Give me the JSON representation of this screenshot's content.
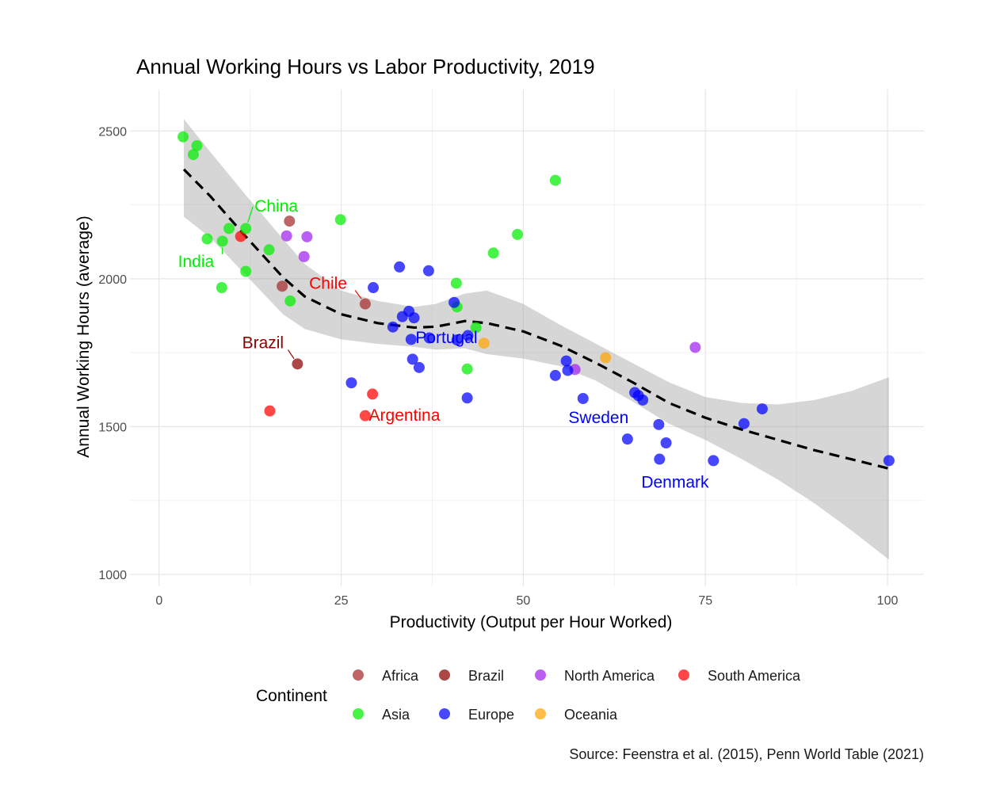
{
  "chart_data": {
    "type": "scatter",
    "title": "Annual Working Hours vs Labor Productivity, 2019",
    "xlabel": "Productivity (Output per Hour Worked)",
    "ylabel": "Annual Working Hours (average)",
    "caption": "Source: Feenstra et al. (2015), Penn World Table (2021)",
    "xlim": [
      -4,
      105
    ],
    "ylim": [
      960,
      2640
    ],
    "x_ticks": [
      0,
      25,
      50,
      75,
      100
    ],
    "y_ticks": [
      1000,
      1500,
      2000,
      2500
    ],
    "grid": true,
    "legend": {
      "title": "Continent",
      "position": "bottom",
      "entries": [
        {
          "label": "Africa",
          "color": "#A52A2A"
        },
        {
          "label": "Brazil",
          "color": "#8B0000"
        },
        {
          "label": "North America",
          "color": "#A020F0"
        },
        {
          "label": "South America",
          "color": "#FF0000"
        },
        {
          "label": "Asia",
          "color": "#00EE00"
        },
        {
          "label": "Europe",
          "color": "#0000FF"
        },
        {
          "label": "Oceania",
          "color": "#FFA500"
        }
      ]
    },
    "series": [
      {
        "name": "Africa",
        "color": "#A52A2A",
        "points": [
          [
            17.9,
            2195
          ],
          [
            16.9,
            1975
          ],
          [
            28.3,
            1915
          ]
        ]
      },
      {
        "name": "Brazil",
        "color": "#8B0000",
        "points": [
          [
            19.0,
            1712
          ]
        ]
      },
      {
        "name": "North America",
        "color": "#A020F0",
        "points": [
          [
            17.5,
            2145
          ],
          [
            20.3,
            2142
          ],
          [
            19.9,
            2075
          ],
          [
            57.1,
            1693
          ],
          [
            73.6,
            1768
          ]
        ]
      },
      {
        "name": "South America",
        "color": "#FF0000",
        "points": [
          [
            15.2,
            1553
          ],
          [
            29.3,
            1610
          ],
          [
            28.3,
            1537
          ],
          [
            11.2,
            2143
          ]
        ]
      },
      {
        "name": "Asia",
        "color": "#00EE00",
        "points": [
          [
            3.3,
            2480
          ],
          [
            4.7,
            2420
          ],
          [
            5.2,
            2450
          ],
          [
            6.6,
            2135
          ],
          [
            9.6,
            2170
          ],
          [
            11.9,
            2170
          ],
          [
            8.7,
            2127
          ],
          [
            8.6,
            1970
          ],
          [
            11.9,
            2025
          ],
          [
            15.1,
            2098
          ],
          [
            18.0,
            1925
          ],
          [
            24.9,
            2200
          ],
          [
            45.9,
            2087
          ],
          [
            49.2,
            2150
          ],
          [
            54.4,
            2333
          ],
          [
            40.8,
            1985
          ],
          [
            40.9,
            1905
          ],
          [
            43.5,
            1835
          ],
          [
            42.3,
            1695
          ]
        ]
      },
      {
        "name": "Europe",
        "color": "#0000FF",
        "points": [
          [
            29.4,
            1970
          ],
          [
            26.4,
            1648
          ],
          [
            33.0,
            2040
          ],
          [
            37.0,
            2027
          ],
          [
            32.1,
            1837
          ],
          [
            33.4,
            1872
          ],
          [
            34.3,
            1890
          ],
          [
            35.0,
            1868
          ],
          [
            34.6,
            1795
          ],
          [
            34.8,
            1728
          ],
          [
            35.7,
            1700
          ],
          [
            37.1,
            1800
          ],
          [
            40.5,
            1920
          ],
          [
            40.9,
            1793
          ],
          [
            42.4,
            1808
          ],
          [
            42.3,
            1597
          ],
          [
            54.4,
            1673
          ],
          [
            55.9,
            1722
          ],
          [
            56.1,
            1690
          ],
          [
            58.2,
            1595
          ],
          [
            64.3,
            1458
          ],
          [
            65.3,
            1615
          ],
          [
            65.8,
            1605
          ],
          [
            66.4,
            1590
          ],
          [
            68.6,
            1507
          ],
          [
            68.7,
            1390
          ],
          [
            69.6,
            1445
          ],
          [
            76.1,
            1385
          ],
          [
            80.3,
            1510
          ],
          [
            82.8,
            1560
          ],
          [
            100.2,
            1385
          ]
        ]
      },
      {
        "name": "Oceania",
        "color": "#FFA500",
        "points": [
          [
            44.6,
            1782
          ],
          [
            61.3,
            1733
          ]
        ]
      }
    ],
    "trend_line": {
      "style": "dashed",
      "points": [
        [
          3.4,
          2370
        ],
        [
          7,
          2280
        ],
        [
          12,
          2140
        ],
        [
          17,
          2005
        ],
        [
          20,
          1940
        ],
        [
          25,
          1880
        ],
        [
          30,
          1850
        ],
        [
          35,
          1835
        ],
        [
          38,
          1838
        ],
        [
          42,
          1857
        ],
        [
          45,
          1850
        ],
        [
          50,
          1822
        ],
        [
          55,
          1775
        ],
        [
          60,
          1715
        ],
        [
          65,
          1650
        ],
        [
          70,
          1580
        ],
        [
          75,
          1530
        ],
        [
          80,
          1490
        ],
        [
          85,
          1455
        ],
        [
          90,
          1420
        ],
        [
          95,
          1390
        ],
        [
          100.2,
          1358
        ]
      ]
    },
    "confidence_band": {
      "upper": [
        [
          3.4,
          2540
        ],
        [
          7,
          2430
        ],
        [
          12,
          2280
        ],
        [
          17,
          2135
        ],
        [
          20,
          2050
        ],
        [
          25,
          1960
        ],
        [
          30,
          1925
        ],
        [
          35,
          1905
        ],
        [
          38,
          1915
        ],
        [
          42,
          1950
        ],
        [
          45,
          1960
        ],
        [
          50,
          1915
        ],
        [
          55,
          1845
        ],
        [
          60,
          1780
        ],
        [
          65,
          1715
        ],
        [
          70,
          1650
        ],
        [
          75,
          1600
        ],
        [
          80,
          1580
        ],
        [
          85,
          1575
        ],
        [
          90,
          1590
        ],
        [
          95,
          1620
        ],
        [
          100.2,
          1667
        ]
      ],
      "lower": [
        [
          3.4,
          2210
        ],
        [
          7,
          2140
        ],
        [
          12,
          2010
        ],
        [
          17,
          1880
        ],
        [
          20,
          1830
        ],
        [
          25,
          1795
        ],
        [
          30,
          1780
        ],
        [
          35,
          1770
        ],
        [
          38,
          1760
        ],
        [
          42,
          1765
        ],
        [
          45,
          1745
        ],
        [
          50,
          1730
        ],
        [
          55,
          1705
        ],
        [
          60,
          1655
        ],
        [
          65,
          1585
        ],
        [
          70,
          1510
        ],
        [
          75,
          1455
        ],
        [
          80,
          1390
        ],
        [
          85,
          1320
        ],
        [
          90,
          1240
        ],
        [
          95,
          1150
        ],
        [
          100.2,
          1050
        ]
      ]
    },
    "annotations": [
      {
        "text": "China",
        "color": "#00EE00",
        "x": 13.1,
        "y": 2228,
        "anchor": "start",
        "point": [
          11.9,
          2170
        ]
      },
      {
        "text": "India",
        "color": "#00EE00",
        "x": 2.6,
        "y": 2040,
        "anchor": "start",
        "point": [
          8.7,
          2127
        ]
      },
      {
        "text": "Chile",
        "color": "#FF0000",
        "x": 20.6,
        "y": 1966,
        "anchor": "start",
        "point": [
          28.3,
          1915
        ]
      },
      {
        "text": "Brazil",
        "color": "#8B0000",
        "x": 11.4,
        "y": 1765,
        "anchor": "start",
        "point": [
          19.0,
          1712
        ]
      },
      {
        "text": "Portugal",
        "color": "#0000FF",
        "x": 35.2,
        "y": 1782,
        "anchor": "start"
      },
      {
        "text": "Argentina",
        "color": "#FF0000",
        "x": 28.8,
        "y": 1520,
        "anchor": "start"
      },
      {
        "text": "Sweden",
        "color": "#0000FF",
        "x": 56.2,
        "y": 1512,
        "anchor": "start"
      },
      {
        "text": "Denmark",
        "color": "#0000FF",
        "x": 66.2,
        "y": 1293,
        "anchor": "start"
      }
    ]
  }
}
